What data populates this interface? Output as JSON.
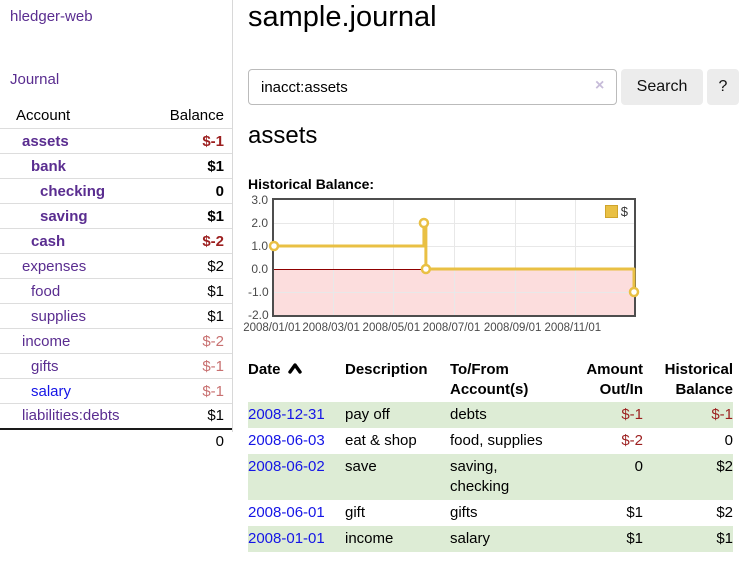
{
  "app": {
    "brand": "hledger-web",
    "nav_journal": "Journal"
  },
  "colors": {
    "purple_link": "#5a2d90",
    "blue_link": "#1515e6",
    "negative": "#9c1f1f",
    "negative_soft": "#c87070",
    "row_shade_green": "#ddecd5",
    "series_gold": "#e9c044",
    "chart_border": "#4d4d4d",
    "zero_line": "#8f0000",
    "negative_region": "#fcdddd"
  },
  "sidebar": {
    "header": {
      "account": "Account",
      "balance": "Balance"
    },
    "accounts": [
      {
        "label": "assets",
        "balance": "$-1",
        "indent": 1,
        "emph": true,
        "link": "purple",
        "bal": "neg"
      },
      {
        "label": "bank",
        "balance": "$1",
        "indent": 2,
        "emph": true,
        "link": "purple",
        "bal": "plain"
      },
      {
        "label": "checking",
        "balance": "0",
        "indent": 3,
        "emph": true,
        "link": "purple",
        "bal": "plain"
      },
      {
        "label": "saving",
        "balance": "$1",
        "indent": 3,
        "emph": true,
        "link": "purple",
        "bal": "plain"
      },
      {
        "label": "cash",
        "balance": "$-2",
        "indent": 2,
        "emph": true,
        "link": "purple",
        "bal": "neg"
      },
      {
        "label": "expenses",
        "balance": "$2",
        "indent": 1,
        "emph": false,
        "link": "purple",
        "bal": "plain"
      },
      {
        "label": "food",
        "balance": "$1",
        "indent": 2,
        "emph": false,
        "link": "purple",
        "bal": "plain"
      },
      {
        "label": "supplies",
        "balance": "$1",
        "indent": 2,
        "emph": false,
        "link": "purple",
        "bal": "plain"
      },
      {
        "label": "income",
        "balance": "$-2",
        "indent": 1,
        "emph": false,
        "link": "purple",
        "bal": "negsoft"
      },
      {
        "label": "gifts",
        "balance": "$-1",
        "indent": 2,
        "emph": false,
        "link": "purple",
        "bal": "negsoft"
      },
      {
        "label": "salary",
        "balance": "$-1",
        "indent": 2,
        "emph": false,
        "link": "blue",
        "bal": "negsoft"
      },
      {
        "label": "liabilities:debts",
        "balance": "$1",
        "indent": 1,
        "emph": false,
        "link": "purple",
        "bal": "plain"
      }
    ],
    "total": "0"
  },
  "header": {
    "title": "sample.journal"
  },
  "search": {
    "value": "inacct:assets",
    "clear": "×",
    "button": "Search",
    "help": "?"
  },
  "account_page": {
    "title": "assets",
    "chart_label": "Historical Balance:"
  },
  "chart_data": {
    "type": "line",
    "step": true,
    "series": [
      {
        "name": "$",
        "color": "#e9c044",
        "points": [
          [
            "2008-01-01",
            1
          ],
          [
            "2008-06-01",
            2
          ],
          [
            "2008-06-03",
            0
          ],
          [
            "2008-12-31",
            -1
          ]
        ]
      }
    ],
    "x_range": [
      "2008-01-01",
      "2008-12-31"
    ],
    "ylim": [
      -2,
      3
    ],
    "yticks": [
      3,
      2,
      1,
      0,
      -1,
      -2
    ],
    "ytick_labels": [
      "3.0",
      "2.0",
      "1.0",
      "0.0",
      "-1.0",
      "-2.0"
    ],
    "xticks": [
      "2008-01-01",
      "2008-03-01",
      "2008-05-01",
      "2008-07-01",
      "2008-09-01",
      "2008-11-01"
    ],
    "xtick_labels": [
      "2008/01/01",
      "2008/03/01",
      "2008/05/01",
      "2008/07/01",
      "2008/09/01",
      "2008/11/01"
    ],
    "legend": {
      "label": "$",
      "position": "top-right"
    },
    "grid": true
  },
  "register": {
    "columns": [
      {
        "line1": "Date",
        "line2": "",
        "align": "left",
        "sorted": "asc"
      },
      {
        "line1": "Description",
        "line2": "",
        "align": "left"
      },
      {
        "line1": "To/From",
        "line2": "Account(s)",
        "align": "left"
      },
      {
        "line1": "Amount",
        "line2": "Out/In",
        "align": "right"
      },
      {
        "line1": "Historical",
        "line2": "Balance",
        "align": "right"
      }
    ],
    "rows": [
      {
        "date": "2008-12-31",
        "description": "pay off",
        "accounts": "debts",
        "amount": "$-1",
        "amount_neg": true,
        "balance": "$-1",
        "balance_neg": true,
        "shaded": true
      },
      {
        "date": "2008-06-03",
        "description": "eat & shop",
        "accounts": "food, supplies",
        "amount": "$-2",
        "amount_neg": true,
        "balance": "0",
        "balance_neg": false,
        "shaded": false
      },
      {
        "date": "2008-06-02",
        "description": "save",
        "accounts": "saving, checking",
        "amount": "0",
        "amount_neg": false,
        "balance": "$2",
        "balance_neg": false,
        "shaded": true
      },
      {
        "date": "2008-06-01",
        "description": "gift",
        "accounts": "gifts",
        "amount": "$1",
        "amount_neg": false,
        "balance": "$2",
        "balance_neg": false,
        "shaded": false
      },
      {
        "date": "2008-01-01",
        "description": "income",
        "accounts": "salary",
        "amount": "$1",
        "amount_neg": false,
        "balance": "$1",
        "balance_neg": false,
        "shaded": true
      }
    ]
  }
}
